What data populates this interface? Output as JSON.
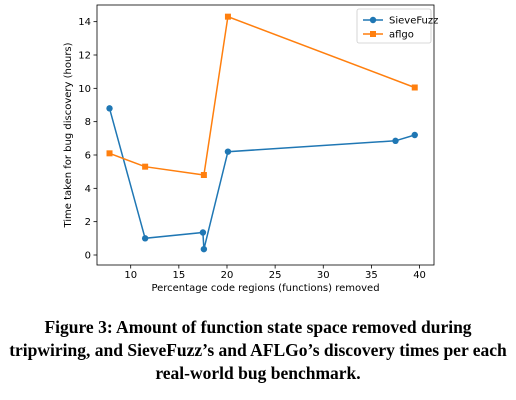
{
  "chart_data": {
    "type": "line",
    "xlabel": "Percentage code regions (functions) removed",
    "ylabel": "Time taken for bug discovery (hours)",
    "xlim": [
      6.5,
      41.5
    ],
    "ylim": [
      -0.6,
      15.0
    ],
    "xticks": [
      10,
      15,
      20,
      25,
      30,
      35,
      40
    ],
    "yticks": [
      0,
      2,
      4,
      6,
      8,
      10,
      12,
      14
    ],
    "grid": false,
    "legend_position": "top-right",
    "series": [
      {
        "name": "SieveFuzz",
        "color": "#1f77b4",
        "marker": "circle",
        "x": [
          7.8,
          11.5,
          17.5,
          17.6,
          20.1,
          37.5,
          39.5
        ],
        "y": [
          8.8,
          1.0,
          1.35,
          0.35,
          6.2,
          6.85,
          7.2
        ]
      },
      {
        "name": "aflgo",
        "color": "#ff7f0e",
        "marker": "square",
        "x": [
          7.8,
          11.5,
          17.6,
          20.1,
          39.5
        ],
        "y": [
          6.1,
          5.3,
          4.8,
          14.3,
          10.05
        ]
      }
    ]
  },
  "caption": "Figure 3: Amount of function state space removed during tripwiring, and SieveFuzz’s and AFLGo’s discovery times per each real-world bug benchmark."
}
